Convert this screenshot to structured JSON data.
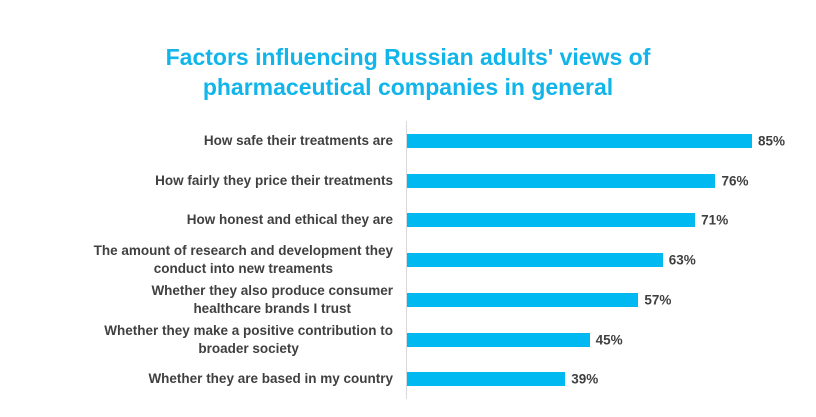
{
  "chart_data": {
    "type": "bar",
    "orientation": "horizontal",
    "title": [
      "Factors influencing Russian adults' views of",
      "pharmaceutical companies in general"
    ],
    "categories": [
      [
        "How safe their treatments are"
      ],
      [
        "How fairly they price their treatments"
      ],
      [
        "How honest and ethical they are"
      ],
      [
        "The amount of research and development they",
        "conduct into new treaments"
      ],
      [
        "Whether they also produce consumer",
        "healthcare brands I trust"
      ],
      [
        "Whether they make a positive contribution to",
        "broader society"
      ],
      [
        "Whether they are based in my country"
      ]
    ],
    "values": [
      85,
      76,
      71,
      63,
      57,
      45,
      39
    ],
    "data_labels": [
      "85%",
      "76%",
      "71%",
      "63%",
      "57%",
      "45%",
      "39%"
    ],
    "xlim": [
      0,
      100
    ],
    "grid": false,
    "bar_color": "#00b9f1",
    "title_color": "#12b5ea"
  }
}
